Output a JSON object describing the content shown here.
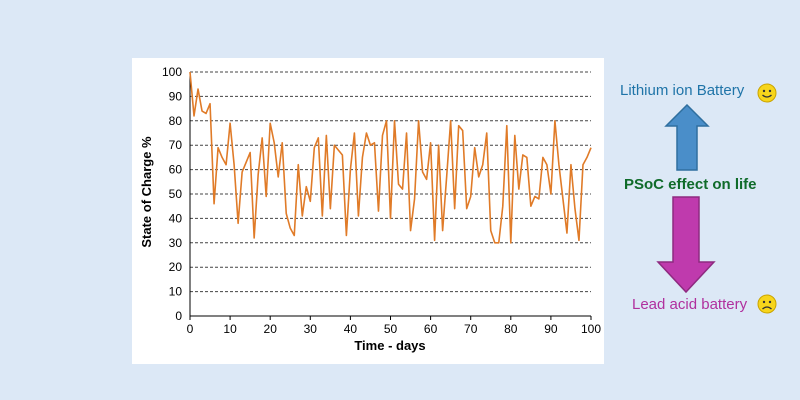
{
  "chart_data": {
    "type": "line",
    "title": "",
    "xlabel": "Time - days",
    "ylabel": "State of Charge %",
    "xlim": [
      0,
      100
    ],
    "ylim": [
      0,
      100
    ],
    "xticks": [
      "0",
      "10",
      "20",
      "30",
      "40",
      "50",
      "60",
      "70",
      "80",
      "90",
      "100"
    ],
    "yticks": [
      "0",
      "10",
      "20",
      "30",
      "40",
      "50",
      "60",
      "70",
      "80",
      "90",
      "100"
    ],
    "grid": "horizontal dashed",
    "line_color": "#e07b28",
    "series": [
      {
        "x": [
          0,
          1,
          2,
          3,
          4,
          5,
          6,
          7,
          8,
          9,
          10,
          11,
          12,
          13,
          14,
          15,
          16,
          17,
          18,
          19,
          20,
          21,
          22,
          23,
          24,
          25,
          26,
          27,
          28,
          29,
          30,
          31,
          32,
          33,
          34,
          35,
          36,
          37,
          38,
          39,
          40,
          41,
          42,
          43,
          44,
          45,
          46,
          47,
          48,
          49,
          50,
          51,
          52,
          53,
          54,
          55,
          56,
          57,
          58,
          59,
          60,
          61,
          62,
          63,
          64,
          65,
          66,
          67,
          68,
          69,
          70,
          71,
          72,
          73,
          74,
          75,
          76,
          77,
          78,
          79,
          80,
          81,
          82,
          83,
          84,
          85,
          86,
          87,
          88,
          89,
          90,
          91,
          92,
          93,
          94,
          95,
          96,
          97,
          98,
          99,
          100
        ],
        "y": [
          100,
          82,
          93,
          84,
          83,
          87,
          46,
          69,
          65,
          62,
          79,
          62,
          38,
          59,
          63,
          67,
          32,
          58,
          73,
          49,
          79,
          71,
          57,
          71,
          42,
          36,
          33,
          62,
          41,
          53,
          47,
          69,
          73,
          41,
          74,
          44,
          70,
          68,
          66,
          33,
          60,
          75,
          41,
          65,
          75,
          70,
          71,
          43,
          74,
          80,
          40,
          80,
          54,
          52,
          75,
          35,
          48,
          80,
          59,
          56,
          71,
          31,
          70,
          35,
          57,
          80,
          44,
          78,
          76,
          44,
          49,
          69,
          57,
          62,
          75,
          35,
          30,
          30,
          45,
          78,
          30,
          74,
          52,
          66,
          65,
          45,
          49,
          48,
          65,
          62,
          50,
          80,
          62,
          48,
          34,
          62,
          44,
          31,
          62,
          65,
          69
        ]
      }
    ]
  },
  "annotations": {
    "top_label": "Lithium ion Battery",
    "middle_label": "PSoC effect on life",
    "bottom_label": "Lead acid battery",
    "top_smiley": "happy-face-icon",
    "bottom_smiley": "sad-face-icon",
    "top_arrow_color": "#4a8ec9",
    "bottom_arrow_color": "#bf3aad"
  }
}
